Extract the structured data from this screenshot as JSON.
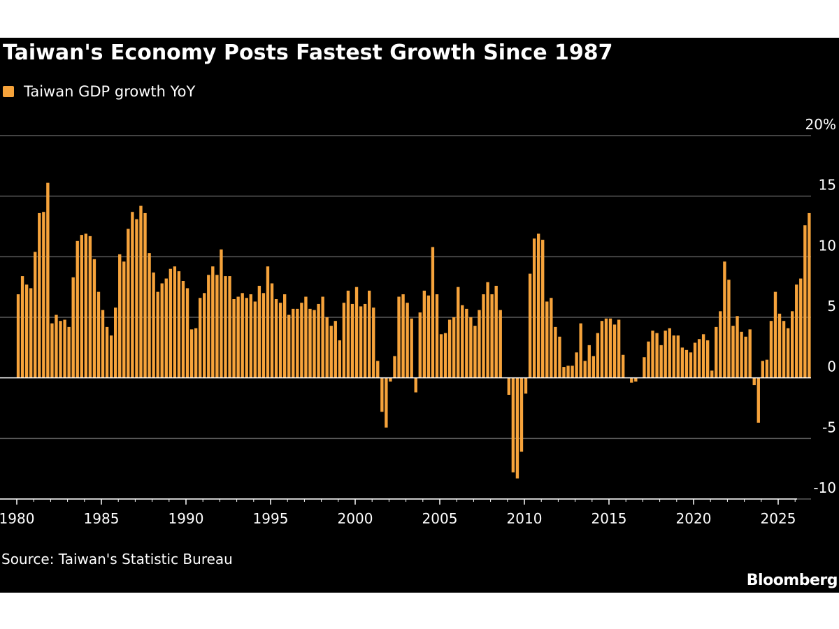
{
  "colors": {
    "background": "#000000",
    "bar": "#f6a33b",
    "grid": "#5a5a5a",
    "axis": "#ffffff",
    "text": "#ffffff"
  },
  "chart_data": {
    "type": "bar",
    "title": "Taiwan's Economy Posts Fastest Growth Since 1987",
    "series_name": "Taiwan GDP growth YoY",
    "unit_suffix": "%",
    "ylim": [
      -10,
      20
    ],
    "yticks": [
      -10,
      -5,
      0,
      5,
      10,
      15,
      20
    ],
    "ytick_labels": [
      "-10",
      "-5",
      "0",
      "5",
      "10",
      "15",
      "20%"
    ],
    "xlim": [
      1980,
      2026.4
    ],
    "xticks": [
      1980,
      1985,
      1990,
      1995,
      2000,
      2005,
      2010,
      2015,
      2020,
      2025
    ],
    "xtick_labels": [
      "1980",
      "1985",
      "1990",
      "1995",
      "2000",
      "2005",
      "2010",
      "2015",
      "2020",
      "2025"
    ],
    "grid": true,
    "start_year": 1980,
    "frequency": "quarterly",
    "values": [
      6.9,
      8.4,
      7.7,
      7.4,
      10.4,
      13.6,
      13.7,
      16.1,
      4.5,
      5.2,
      4.7,
      4.8,
      4.2,
      8.3,
      11.3,
      11.8,
      11.9,
      11.7,
      9.8,
      7.1,
      5.6,
      4.2,
      3.5,
      5.8,
      10.2,
      9.6,
      12.3,
      13.7,
      13.1,
      14.2,
      13.6,
      10.3,
      8.7,
      7.1,
      7.8,
      8.2,
      9.0,
      9.2,
      8.8,
      8.0,
      7.4,
      4.0,
      4.1,
      6.6,
      7.0,
      8.5,
      9.2,
      8.5,
      10.6,
      8.4,
      8.4,
      6.5,
      6.7,
      7.0,
      6.6,
      6.9,
      6.3,
      7.6,
      7.0,
      9.2,
      7.8,
      6.5,
      6.2,
      6.9,
      5.2,
      5.7,
      5.7,
      6.2,
      6.7,
      5.7,
      5.6,
      6.1,
      6.7,
      5.0,
      4.3,
      4.7,
      3.1,
      6.2,
      7.2,
      6.1,
      7.5,
      5.9,
      6.1,
      7.2,
      5.8,
      1.4,
      -2.8,
      -4.1,
      -0.3,
      1.8,
      6.7,
      6.9,
      6.2,
      4.9,
      -1.2,
      5.4,
      7.2,
      6.8,
      10.8,
      6.9,
      3.6,
      3.7,
      4.8,
      5.0,
      7.5,
      6.0,
      5.7,
      5.0,
      4.3,
      5.6,
      6.9,
      7.9,
      6.9,
      7.6,
      5.6,
      0,
      -1.4,
      -7.8,
      -8.3,
      -6.1,
      -1.3,
      8.6,
      11.5,
      11.9,
      11.4,
      6.3,
      6.6,
      4.2,
      3.4,
      0.9,
      1.0,
      1.0,
      2.1,
      4.5,
      1.4,
      2.7,
      1.8,
      3.7,
      4.7,
      4.9,
      4.9,
      4.4,
      4.8,
      1.9,
      0.0,
      -0.4,
      -0.3,
      0.0,
      1.7,
      3.0,
      3.9,
      3.7,
      2.7,
      3.9,
      4.1,
      3.5,
      3.5,
      2.5,
      2.3,
      2.1,
      2.9,
      3.2,
      3.6,
      3.1,
      0.6,
      4.2,
      5.5,
      9.6,
      8.1,
      4.3,
      5.1,
      3.8,
      3.4,
      4.0,
      -0.6,
      -3.7,
      1.4,
      1.5,
      4.7,
      7.1,
      5.3,
      4.7,
      4.1,
      5.5,
      7.7,
      8.2,
      12.6,
      13.6
    ]
  },
  "source": "Source: Taiwan's Statistic Bureau",
  "brand": "Bloomberg"
}
